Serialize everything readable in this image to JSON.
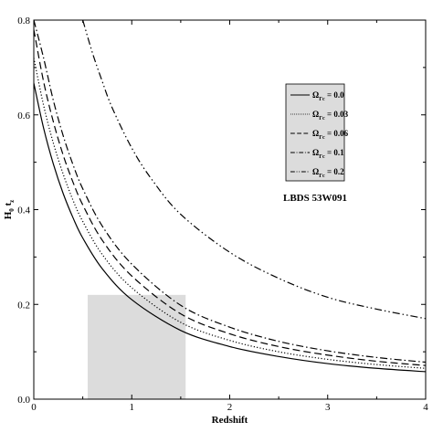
{
  "chart_data": {
    "type": "line",
    "xlabel": "Redshift",
    "ylabel": "H₀ t_z",
    "xlim": [
      0,
      4
    ],
    "ylim": [
      0,
      0.8
    ],
    "x_ticks": [
      "0",
      "1",
      "2",
      "3",
      "4"
    ],
    "y_ticks": [
      "0.0",
      "0.2",
      "0.4",
      "0.6",
      "0.8"
    ],
    "annotation": "LBDS 53W091",
    "legend_position": "upper-right",
    "shaded_region": {
      "x": [
        0.55,
        1.55
      ],
      "y": [
        0,
        0.22
      ],
      "color": "#dcdcdc"
    },
    "series": [
      {
        "name": "Ω_{Γc} = 0.0",
        "label_main": "Ω",
        "label_sub": "Γc",
        "label_value": " = 0.0",
        "dash": "solid",
        "x": [
          0,
          0.1,
          0.2,
          0.3,
          0.4,
          0.5,
          0.7,
          1.0,
          1.5,
          2.0,
          2.5,
          3.0,
          3.5,
          4.0
        ],
        "y": [
          0.667,
          0.572,
          0.496,
          0.434,
          0.383,
          0.34,
          0.275,
          0.21,
          0.145,
          0.111,
          0.09,
          0.075,
          0.065,
          0.058
        ]
      },
      {
        "name": "Ω_{Γc} = 0.03",
        "label_main": "Ω",
        "label_sub": "Γc",
        "label_value": " = 0.03",
        "dash": "dotted",
        "x": [
          0,
          0.1,
          0.2,
          0.3,
          0.4,
          0.5,
          0.7,
          1.0,
          1.5,
          2.0,
          2.5,
          3.0,
          3.5,
          4.0
        ],
        "y": [
          0.72,
          0.62,
          0.54,
          0.475,
          0.42,
          0.375,
          0.305,
          0.235,
          0.162,
          0.124,
          0.1,
          0.084,
          0.073,
          0.065
        ]
      },
      {
        "name": "Ω_{Γc} = 0.06",
        "label_main": "Ω",
        "label_sub": "Γc",
        "label_value": " = 0.06",
        "dash": "dashed",
        "x": [
          0,
          0.1,
          0.2,
          0.3,
          0.4,
          0.5,
          0.7,
          1.0,
          1.5,
          2.0,
          2.5,
          3.0,
          3.5,
          4.0
        ],
        "y": [
          0.78,
          0.67,
          0.585,
          0.515,
          0.458,
          0.41,
          0.335,
          0.26,
          0.18,
          0.138,
          0.111,
          0.093,
          0.08,
          0.071
        ]
      },
      {
        "name": "Ω_{Γc} = 0.1",
        "label_main": "Ω",
        "label_sub": "Γc",
        "label_value": " = 0.1",
        "dash": "dashdot",
        "x": [
          0,
          0.1,
          0.2,
          0.3,
          0.4,
          0.5,
          0.7,
          1.0,
          1.5,
          2.0,
          2.5,
          3.0,
          3.5,
          4.0
        ],
        "y": [
          0.8,
          0.72,
          0.63,
          0.556,
          0.495,
          0.444,
          0.365,
          0.285,
          0.198,
          0.152,
          0.122,
          0.102,
          0.088,
          0.078
        ]
      },
      {
        "name": "Ω_{Γc} = 0.2",
        "label_main": "Ω",
        "label_sub": "Γc",
        "label_value": " = 0.2",
        "dash": "dashdotdot",
        "x": [
          0.5,
          0.6,
          0.7,
          0.8,
          1.0,
          1.2,
          1.5,
          2.0,
          2.5,
          3.0,
          3.5,
          4.0
        ],
        "y": [
          0.8,
          0.73,
          0.67,
          0.615,
          0.53,
          0.465,
          0.39,
          0.31,
          0.255,
          0.215,
          0.19,
          0.17
        ]
      }
    ]
  }
}
